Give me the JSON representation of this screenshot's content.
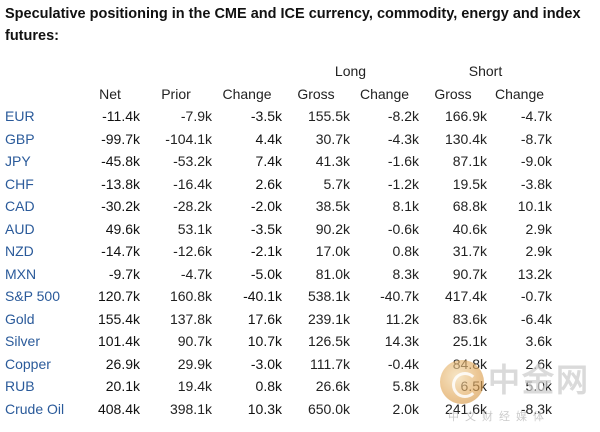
{
  "title": "Speculative positioning in the CME and ICE currency, commodity, energy and index futures:",
  "group_headers": {
    "long": "Long",
    "short": "Short"
  },
  "columns": [
    "Net",
    "Prior",
    "Change",
    "Gross",
    "Change",
    "Gross",
    "Change"
  ],
  "rows": [
    {
      "label": "EUR",
      "net": "-11.4k",
      "prior": "-7.9k",
      "change": "-3.5k",
      "long_gross": "155.5k",
      "long_change": "-8.2k",
      "short_gross": "166.9k",
      "short_change": "-4.7k"
    },
    {
      "label": "GBP",
      "net": "-99.7k",
      "prior": "-104.1k",
      "change": "4.4k",
      "long_gross": "30.7k",
      "long_change": "-4.3k",
      "short_gross": "130.4k",
      "short_change": "-8.7k"
    },
    {
      "label": "JPY",
      "net": "-45.8k",
      "prior": "-53.2k",
      "change": "7.4k",
      "long_gross": "41.3k",
      "long_change": "-1.6k",
      "short_gross": "87.1k",
      "short_change": "-9.0k"
    },
    {
      "label": "CHF",
      "net": "-13.8k",
      "prior": "-16.4k",
      "change": "2.6k",
      "long_gross": "5.7k",
      "long_change": "-1.2k",
      "short_gross": "19.5k",
      "short_change": "-3.8k"
    },
    {
      "label": "CAD",
      "net": "-30.2k",
      "prior": "-28.2k",
      "change": "-2.0k",
      "long_gross": "38.5k",
      "long_change": "8.1k",
      "short_gross": "68.8k",
      "short_change": "10.1k"
    },
    {
      "label": "AUD",
      "net": "49.6k",
      "prior": "53.1k",
      "change": "-3.5k",
      "long_gross": "90.2k",
      "long_change": "-0.6k",
      "short_gross": "40.6k",
      "short_change": "2.9k"
    },
    {
      "label": "NZD",
      "net": "-14.7k",
      "prior": "-12.6k",
      "change": "-2.1k",
      "long_gross": "17.0k",
      "long_change": "0.8k",
      "short_gross": "31.7k",
      "short_change": "2.9k"
    },
    {
      "label": "MXN",
      "net": "-9.7k",
      "prior": "-4.7k",
      "change": "-5.0k",
      "long_gross": "81.0k",
      "long_change": "8.3k",
      "short_gross": "90.7k",
      "short_change": "13.2k"
    },
    {
      "label": "S&P 500",
      "net": "120.7k",
      "prior": "160.8k",
      "change": "-40.1k",
      "long_gross": "538.1k",
      "long_change": "-40.7k",
      "short_gross": "417.4k",
      "short_change": "-0.7k"
    },
    {
      "label": "Gold",
      "net": "155.4k",
      "prior": "137.8k",
      "change": "17.6k",
      "long_gross": "239.1k",
      "long_change": "11.2k",
      "short_gross": "83.6k",
      "short_change": "-6.4k"
    },
    {
      "label": "Silver",
      "net": "101.4k",
      "prior": "90.7k",
      "change": "10.7k",
      "long_gross": "126.5k",
      "long_change": "14.3k",
      "short_gross": "25.1k",
      "short_change": "3.6k"
    },
    {
      "label": "Copper",
      "net": "26.9k",
      "prior": "29.9k",
      "change": "-3.0k",
      "long_gross": "111.7k",
      "long_change": "-0.4k",
      "short_gross": "84.8k",
      "short_change": "2.6k"
    },
    {
      "label": "RUB",
      "net": "20.1k",
      "prior": "19.4k",
      "change": "0.8k",
      "long_gross": "26.6k",
      "long_change": "5.8k",
      "short_gross": "6.5k",
      "short_change": "5.0k"
    },
    {
      "label": "Crude Oil",
      "net": "408.4k",
      "prior": "398.1k",
      "change": "10.3k",
      "long_gross": "650.0k",
      "long_change": "2.0k",
      "short_gross": "241.6k",
      "short_change": "-8.3k"
    }
  ],
  "watermark": {
    "text": "中金网",
    "subtext": "中文财经媒体",
    "icon": "gold-coin-logo-icon"
  },
  "colors": {
    "label": "#2a5a9a",
    "text": "#222222",
    "bold_text": "#111111"
  }
}
